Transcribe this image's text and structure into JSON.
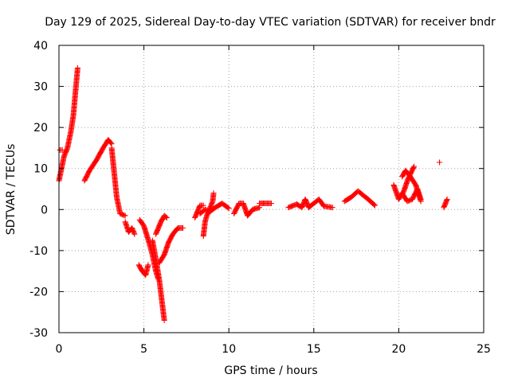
{
  "chart_data": {
    "type": "scatter",
    "title": "Day 129 of 2025, Sidereal Day-to-day VTEC variation (SDTVAR) for receiver bndr",
    "xlabel": "GPS time / hours",
    "ylabel": "SDTVAR / TECUs",
    "xlim": [
      0,
      25
    ],
    "ylim": [
      -30,
      40
    ],
    "xticks": [
      "0",
      "5",
      "10",
      "15",
      "20",
      "25"
    ],
    "yticks": [
      "-30",
      "-20",
      "-10",
      "0",
      "10",
      "20",
      "30",
      "40"
    ],
    "grid": true,
    "legend": "none",
    "marker": "plus",
    "color": "#ff0000",
    "segments": [
      [
        [
          0.0,
          7
        ],
        [
          0.3,
          13
        ],
        [
          0.5,
          15
        ],
        [
          0.7,
          19
        ],
        [
          0.85,
          23
        ],
        [
          1.0,
          30
        ],
        [
          1.1,
          34.5
        ]
      ],
      [
        [
          0.05,
          14.5
        ],
        [
          0.2,
          14.5
        ]
      ],
      [
        [
          1.5,
          7
        ],
        [
          1.8,
          9.5
        ],
        [
          2.2,
          12
        ],
        [
          2.6,
          15
        ],
        [
          2.9,
          17
        ],
        [
          3.1,
          16
        ]
      ],
      [
        [
          3.1,
          15
        ],
        [
          3.2,
          11
        ],
        [
          3.4,
          3
        ],
        [
          3.6,
          -1
        ],
        [
          3.9,
          -1.5
        ]
      ],
      [
        [
          3.9,
          -3
        ],
        [
          4.1,
          -5.5
        ],
        [
          4.3,
          -4.5
        ],
        [
          4.45,
          -6
        ]
      ],
      [
        [
          4.7,
          -13.5
        ],
        [
          4.9,
          -15
        ],
        [
          5.1,
          -16
        ],
        [
          5.25,
          -13.5
        ]
      ],
      [
        [
          4.75,
          -2.5
        ],
        [
          5.0,
          -4
        ],
        [
          5.3,
          -8
        ],
        [
          5.5,
          -11
        ],
        [
          5.7,
          -15
        ],
        [
          5.85,
          -17
        ]
      ],
      [
        [
          5.5,
          -7.5
        ],
        [
          5.7,
          -12
        ],
        [
          5.9,
          -17
        ],
        [
          6.05,
          -22
        ],
        [
          6.2,
          -27
        ]
      ],
      [
        [
          5.7,
          -6
        ],
        [
          6.0,
          -3
        ],
        [
          6.2,
          -1.5
        ],
        [
          6.35,
          -2
        ]
      ],
      [
        [
          5.9,
          -13
        ],
        [
          6.2,
          -11
        ],
        [
          6.45,
          -8
        ],
        [
          6.7,
          -6
        ],
        [
          7.0,
          -4.5
        ],
        [
          7.3,
          -4.5
        ]
      ],
      [
        [
          8.0,
          -2
        ],
        [
          8.3,
          1
        ],
        [
          8.5,
          1
        ]
      ],
      [
        [
          8.5,
          -6.5
        ],
        [
          8.6,
          -3
        ],
        [
          8.7,
          -1.5
        ],
        [
          8.9,
          0.5
        ],
        [
          9.05,
          2
        ],
        [
          9.1,
          4
        ]
      ],
      [
        [
          8.3,
          -1
        ],
        [
          8.6,
          0
        ],
        [
          8.9,
          -0.5
        ],
        [
          9.2,
          0.5
        ],
        [
          9.6,
          1.5
        ],
        [
          10.0,
          0.3
        ]
      ],
      [
        [
          10.3,
          -1
        ],
        [
          10.6,
          1.5
        ],
        [
          10.85,
          1.5
        ],
        [
          11.1,
          -1.5
        ],
        [
          11.4,
          0
        ],
        [
          11.8,
          0.5
        ]
      ],
      [
        [
          11.8,
          1.5
        ],
        [
          12.2,
          1.5
        ],
        [
          12.5,
          1.5
        ]
      ],
      [
        [
          13.5,
          0.5
        ],
        [
          14.0,
          1.3
        ],
        [
          14.3,
          0.5
        ],
        [
          14.5,
          2.5
        ],
        [
          14.7,
          0.5
        ],
        [
          15.0,
          1.5
        ],
        [
          15.3,
          2.5
        ],
        [
          15.6,
          0.8
        ],
        [
          16.1,
          0.5
        ]
      ],
      [
        [
          16.8,
          2
        ],
        [
          17.2,
          3
        ],
        [
          17.6,
          4.5
        ],
        [
          17.9,
          3.5
        ],
        [
          18.2,
          2.5
        ],
        [
          18.6,
          1
        ]
      ],
      [
        [
          19.7,
          6
        ],
        [
          20.0,
          2.5
        ],
        [
          20.3,
          4.5
        ],
        [
          20.55,
          7.5
        ],
        [
          20.9,
          10.5
        ]
      ],
      [
        [
          20.2,
          4
        ],
        [
          20.5,
          2
        ],
        [
          20.8,
          2.5
        ],
        [
          21.1,
          5
        ],
        [
          21.3,
          2.5
        ]
      ],
      [
        [
          20.2,
          8
        ],
        [
          20.4,
          9.5
        ],
        [
          20.6,
          8.5
        ],
        [
          21.0,
          6
        ],
        [
          21.3,
          2
        ]
      ],
      [
        [
          22.65,
          0.5
        ],
        [
          22.85,
          2.5
        ]
      ],
      [
        [
          22.4,
          11.5
        ],
        [
          22.4,
          11.5
        ]
      ]
    ]
  }
}
